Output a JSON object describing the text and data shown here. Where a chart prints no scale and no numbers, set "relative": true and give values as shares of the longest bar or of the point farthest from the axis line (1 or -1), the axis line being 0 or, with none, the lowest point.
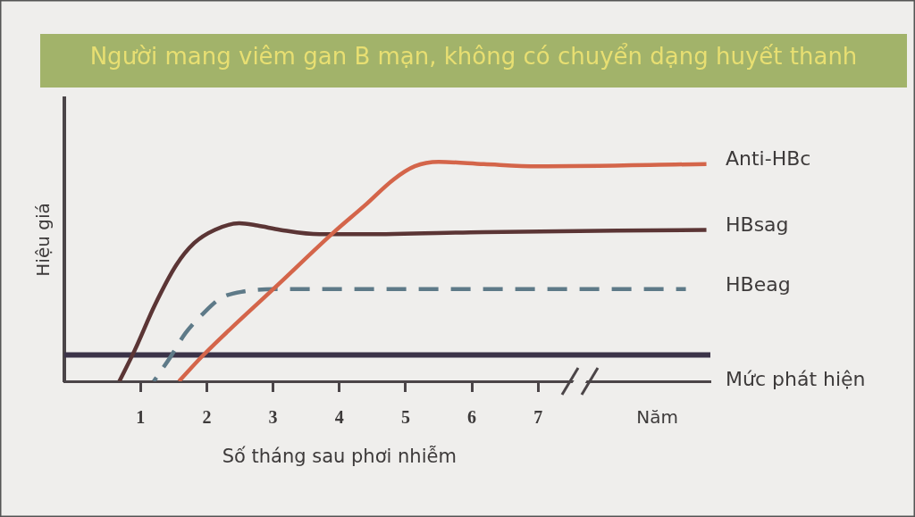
{
  "chart_data": {
    "type": "line",
    "title": "Người mang viêm gan B mạn, không có chuyển dạng huyết thanh",
    "xlabel": "Số tháng sau phơi nhiễm",
    "ylabel": "Hiệu giá",
    "relative": true,
    "line_style": "solid",
    "xlim": [
      -0.15,
      9.6
    ],
    "xticks": [
      1,
      2,
      3,
      4,
      5,
      6,
      7,
      {
        "value": 8.8,
        "label": "Năm"
      }
    ],
    "series": [
      {
        "name": "Anti-HBc",
        "color": "#d4654a",
        "x": [
          1.58,
          1.95,
          3.11,
          3.92,
          4.38,
          4.82,
          5.14,
          5.5,
          6.18,
          6.99,
          9.54
        ],
        "values": [
          0,
          0.12,
          0.45,
          0.68,
          0.8,
          0.92,
          0.98,
          1.0,
          0.99,
          0.98,
          0.99
        ]
      },
      {
        "name": "HBsag",
        "color": "#5b3535",
        "x": [
          0.68,
          0.91,
          1.22,
          1.54,
          1.81,
          2.12,
          2.49,
          2.76,
          3.11,
          3.7,
          4.38,
          6.18,
          9.54
        ],
        "values": [
          0,
          0.14,
          0.35,
          0.53,
          0.63,
          0.69,
          0.72,
          0.71,
          0.69,
          0.67,
          0.67,
          0.68,
          0.69
        ]
      },
      {
        "name": "HBeag",
        "color": "#5e7a88",
        "line_style": "dashed",
        "x": [
          1.2,
          1.45,
          1.68,
          1.95,
          2.22,
          2.57,
          3.03,
          6.18,
          9.23
        ],
        "values": [
          0,
          0.11,
          0.22,
          0.31,
          0.38,
          0.41,
          0.42,
          0.42,
          0.42
        ]
      }
    ],
    "ref_lines": [
      {
        "axis": "y",
        "value": 0.12,
        "label": "Mức phát hiện",
        "color": "#3b3348"
      }
    ]
  }
}
